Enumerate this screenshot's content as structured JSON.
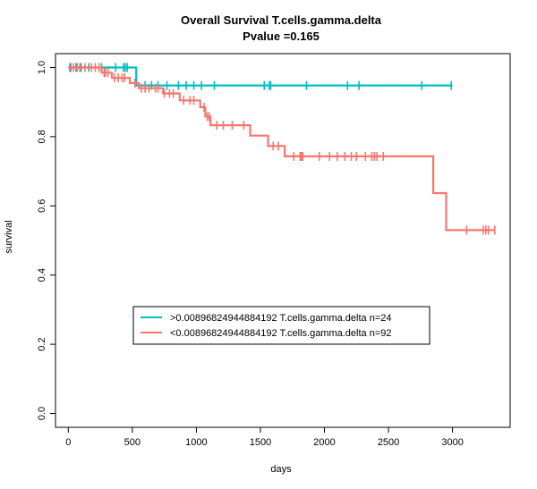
{
  "chart_data": {
    "type": "line",
    "title": "Overall Survival T.cells.gamma.delta",
    "subtitle": "Pvalue =0.165",
    "xlabel": "days",
    "ylabel": "survival",
    "xlim": [
      -100,
      3450
    ],
    "ylim": [
      -0.04,
      1.04
    ],
    "x_ticks": [
      0,
      500,
      1000,
      1500,
      2000,
      2500,
      3000
    ],
    "y_ticks": [
      0.0,
      0.2,
      0.4,
      0.6,
      0.8,
      1.0
    ],
    "y_tick_labels": [
      "0.0",
      "0.2",
      "0.4",
      "0.6",
      "0.8",
      "1.0"
    ],
    "grid": false,
    "legend_position": "bottom-center",
    "series": [
      {
        "name": ">0.00896824944884192 T.cells.gamma.delta n=24",
        "color": "#00BFC4",
        "steps": [
          [
            0,
            1.0
          ],
          [
            530,
            1.0
          ],
          [
            530,
            0.948
          ],
          [
            3000,
            0.948
          ]
        ],
        "censor_x": [
          20,
          60,
          100,
          160,
          260,
          370,
          430,
          445,
          460,
          600,
          650,
          700,
          770,
          860,
          920,
          980,
          1040,
          1140,
          1530,
          1570,
          1580,
          1860,
          2180,
          2270,
          2760,
          2990
        ]
      },
      {
        "name": "<0.00896824944884192 T.cells.gamma.delta n=92",
        "color": "#F8766D",
        "steps": [
          [
            0,
            1.0
          ],
          [
            260,
            1.0
          ],
          [
            260,
            0.985
          ],
          [
            340,
            0.985
          ],
          [
            340,
            0.97
          ],
          [
            480,
            0.97
          ],
          [
            480,
            0.955
          ],
          [
            550,
            0.955
          ],
          [
            550,
            0.94
          ],
          [
            740,
            0.94
          ],
          [
            740,
            0.925
          ],
          [
            870,
            0.925
          ],
          [
            870,
            0.905
          ],
          [
            1030,
            0.905
          ],
          [
            1030,
            0.885
          ],
          [
            1070,
            0.885
          ],
          [
            1070,
            0.858
          ],
          [
            1110,
            0.858
          ],
          [
            1110,
            0.833
          ],
          [
            1420,
            0.833
          ],
          [
            1420,
            0.803
          ],
          [
            1560,
            0.803
          ],
          [
            1560,
            0.773
          ],
          [
            1690,
            0.773
          ],
          [
            1690,
            0.743
          ],
          [
            2850,
            0.743
          ],
          [
            2850,
            0.637
          ],
          [
            2950,
            0.637
          ],
          [
            2950,
            0.53
          ],
          [
            3330,
            0.53
          ]
        ],
        "censor_x": [
          10,
          40,
          70,
          90,
          130,
          180,
          210,
          240,
          280,
          290,
          310,
          360,
          390,
          420,
          440,
          520,
          570,
          600,
          630,
          680,
          700,
          750,
          790,
          820,
          900,
          950,
          980,
          1060,
          1085,
          1100,
          1160,
          1210,
          1280,
          1370,
          1600,
          1640,
          1760,
          1810,
          1820,
          1830,
          1960,
          2040,
          2100,
          2160,
          2210,
          2250,
          2320,
          2370,
          2390,
          2410,
          2460,
          3110,
          3240,
          3260,
          3280,
          3330
        ]
      }
    ]
  }
}
